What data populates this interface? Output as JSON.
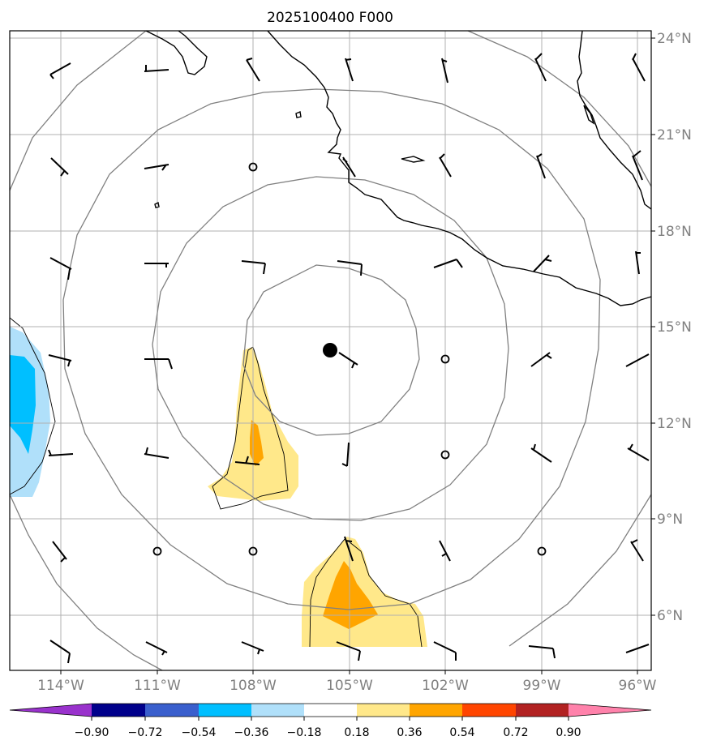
{
  "title": "2025100400 F000",
  "map": {
    "lat_labels": [
      "24°N",
      "21°N",
      "18°N",
      "15°N",
      "12°N",
      "9°N",
      "6°N"
    ],
    "lon_labels": [
      "114°W",
      "111°W",
      "108°W",
      "105°W",
      "102°W",
      "99°W",
      "96°W"
    ],
    "storm_center": {
      "lon": -105.6,
      "lat": 14.3
    }
  },
  "colorbar": {
    "labels": [
      "−0.90",
      "−0.72",
      "−0.54",
      "−0.36",
      "−0.18",
      "0.18",
      "0.36",
      "0.54",
      "0.72",
      "0.90"
    ],
    "colors": [
      "#9932cc",
      "#00008b",
      "#3a5fcd",
      "#00bfff",
      "#b0e0fa",
      "#ffffff",
      "#ffe88a",
      "#ffa500",
      "#ff4500",
      "#b22222",
      "#ff82ab"
    ]
  },
  "colors": {
    "coast": "#000000",
    "rings": "#808080",
    "grid": "#b0b0b0",
    "positive_low": "#ffe88a",
    "positive_mid": "#ffa500",
    "negative_low": "#b0e0fa",
    "negative_mid": "#00bfff"
  }
}
